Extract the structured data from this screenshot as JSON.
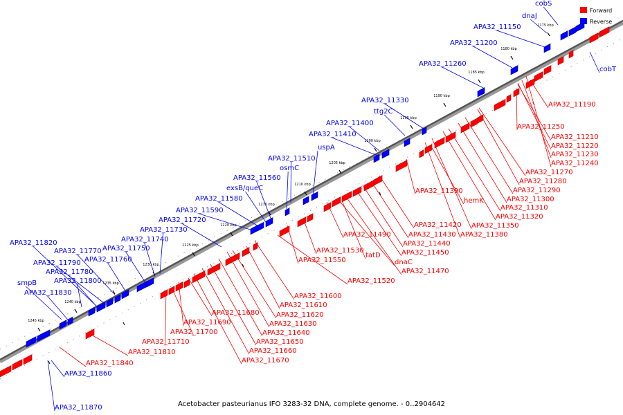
{
  "caption": "Acetobacter pasteurianus IFO 3283-32 DNA, complete genome. - 0..2904642",
  "legend": [
    {
      "label": "Forward",
      "color": "#ff0000"
    },
    {
      "label": "Reverse",
      "color": "#0000ff"
    }
  ],
  "colors": {
    "forward": "#ff0000",
    "forward_dark": "#b80000",
    "reverse": "#0000ff",
    "reverse_dark": "#00009e",
    "backbone": "#8a8a8a"
  },
  "ticks": [
    "1175 kbp",
    "1180 kbp",
    "1185 kbp",
    "1190 kbp",
    "1195 kbp",
    "1200 kbp",
    "1205 kbp",
    "1210 kbp",
    "1215 kbp",
    "1220 kbp",
    "1225 kbp",
    "1230 kbp",
    "1235 kbp",
    "1240 kbp",
    "1245 kbp"
  ],
  "reverse_labels": [
    "cobS",
    "dnaJ",
    "APA32_11150",
    "APA32_11200",
    "APA32_11260",
    "APA32_11330",
    "ttg2C",
    "APA32_11400",
    "APA32_11410",
    "uspA",
    "APA32_11510",
    "osmC",
    "APA32_11560",
    "exsB/queC",
    "APA32_11580",
    "APA32_11590",
    "APA32_11720",
    "APA32_11730",
    "APA32_11740",
    "APA32_11750",
    "APA32_11760",
    "APA32_11770",
    "APA32_11820",
    "APA32_11790",
    "APA32_11780",
    "APA32_11800",
    "smpB",
    "APA32_11830",
    "APA32_11860",
    "APA32_11870",
    "cobT"
  ],
  "forward_labels": [
    "APA32_11190",
    "APA32_11250",
    "APA32_11210",
    "APA32_11220",
    "APA32_11230",
    "APA32_11240",
    "APA32_11270",
    "APA32_11280",
    "APA32_11290",
    "APA32_11300",
    "APA32_11310",
    "APA32_11320",
    "APA32_11350",
    "APA32_11380",
    "hemK",
    "APA32_11390",
    "APA32_11420",
    "APA32_11430",
    "APA32_11440",
    "APA32_11450",
    "APA32_11470",
    "dnaC",
    "tatD",
    "APA32_11490",
    "APA32_11530",
    "APA32_11550",
    "APA32_11520",
    "APA32_11600",
    "APA32_11610",
    "APA32_11620",
    "APA32_11630",
    "APA32_11640",
    "APA32_11650",
    "APA32_11660",
    "APA32_11670",
    "APA32_11680",
    "APA32_11690",
    "APA32_11700",
    "APA32_11710",
    "APA32_11810",
    "APA32_11840"
  ]
}
